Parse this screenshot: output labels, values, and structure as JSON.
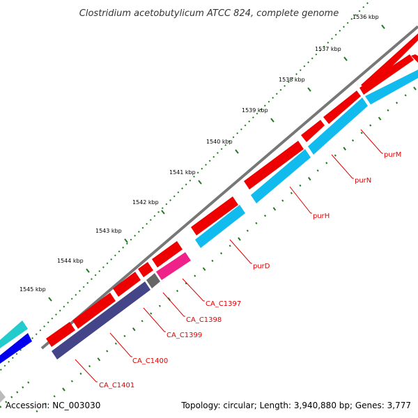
{
  "title": "Clostridium acetobutylicum ATCC 824, complete genome",
  "footer": {
    "accession_label": "Accession:",
    "accession": "NC_003030",
    "summary": "Topology: circular; Length: 3,940,880 bp; Genes: 3,777"
  },
  "colors": {
    "backbone": "#777777",
    "forward_gene": "#ee0000",
    "reverse_gene": "#11bbee",
    "pink_gene": "#ee2288",
    "dark_gene": "#444488",
    "gray_gene": "#666666",
    "teal_gene": "#22cccc",
    "blue_gene": "#0000ee",
    "ticks": "#227722",
    "labels": "#dd0000"
  },
  "ticks": [
    {
      "label": "1536 kbp",
      "kbp": 1536
    },
    {
      "label": "1537 kbp",
      "kbp": 1537
    },
    {
      "label": "1538 kbp",
      "kbp": 1538
    },
    {
      "label": "1539 kbp",
      "kbp": 1539
    },
    {
      "label": "1540 kbp",
      "kbp": 1540
    },
    {
      "label": "1541 kbp",
      "kbp": 1541
    },
    {
      "label": "1542 kbp",
      "kbp": 1542
    },
    {
      "label": "1543 kbp",
      "kbp": 1543
    },
    {
      "label": "1544 kbp",
      "kbp": 1544
    },
    {
      "label": "1545 kbp",
      "kbp": 1545
    }
  ],
  "gene_labels": [
    {
      "name": "purM"
    },
    {
      "name": "purN"
    },
    {
      "name": "purH"
    },
    {
      "name": "purD"
    },
    {
      "name": "CA_C1397"
    },
    {
      "name": "CA_C1398"
    },
    {
      "name": "CA_C1399"
    },
    {
      "name": "CA_C1400"
    },
    {
      "name": "CA_C1401"
    }
  ]
}
